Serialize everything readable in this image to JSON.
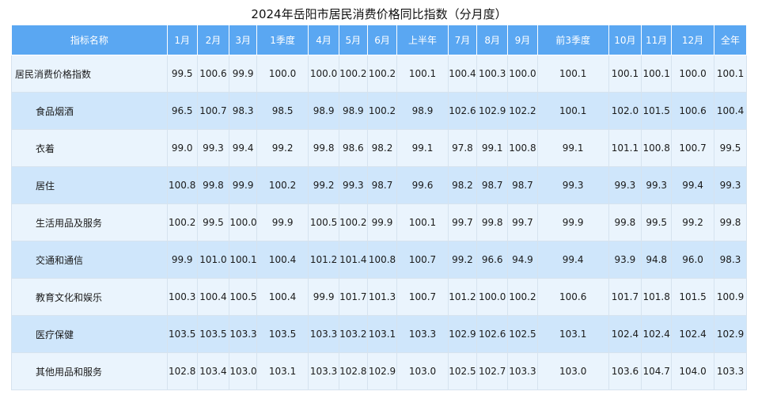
{
  "title": "2024年岳阳市居民消费价格同比指数（分月度）",
  "columns": [
    "指标名称",
    "1月",
    "2月",
    "3月",
    "1季度",
    "4月",
    "5月",
    "6月",
    "上半年",
    "7月",
    "8月",
    "9月",
    "前3季度",
    "10月",
    "11月",
    "12月",
    "全年"
  ],
  "rows": [
    {
      "name": "居民消费价格指数",
      "values": [
        "99.5",
        "100.6",
        "99.9",
        "100.0",
        "100.0",
        "100.2",
        "100.2",
        "100.1",
        "100.4",
        "100.3",
        "100.0",
        "100.1",
        "100.1",
        "100.1",
        "100.0",
        "100.1"
      ]
    },
    {
      "name": "食品烟酒",
      "values": [
        "96.5",
        "100.7",
        "98.3",
        "98.5",
        "98.9",
        "98.9",
        "100.2",
        "98.9",
        "102.6",
        "102.9",
        "102.2",
        "100.1",
        "102.0",
        "101.5",
        "100.6",
        "100.4"
      ]
    },
    {
      "name": "衣着",
      "values": [
        "99.0",
        "99.3",
        "99.4",
        "99.2",
        "99.8",
        "98.6",
        "98.2",
        "99.1",
        "97.8",
        "99.1",
        "100.8",
        "99.1",
        "101.1",
        "100.8",
        "100.7",
        "99.5"
      ]
    },
    {
      "name": "居住",
      "values": [
        "100.8",
        "99.8",
        "99.9",
        "100.2",
        "99.2",
        "99.3",
        "98.7",
        "99.6",
        "98.2",
        "98.7",
        "98.7",
        "99.3",
        "99.3",
        "99.3",
        "99.4",
        "99.3"
      ]
    },
    {
      "name": "生活用品及服务",
      "values": [
        "100.2",
        "99.5",
        "100.0",
        "99.9",
        "100.5",
        "100.2",
        "99.9",
        "100.1",
        "99.7",
        "99.8",
        "99.7",
        "99.9",
        "99.8",
        "99.5",
        "99.2",
        "99.8"
      ]
    },
    {
      "name": "交通和通信",
      "values": [
        "99.9",
        "101.0",
        "100.1",
        "100.4",
        "101.2",
        "101.4",
        "100.8",
        "100.7",
        "99.2",
        "96.6",
        "94.9",
        "99.4",
        "93.9",
        "94.8",
        "96.0",
        "98.3"
      ]
    },
    {
      "name": "教育文化和娱乐",
      "values": [
        "100.3",
        "100.4",
        "100.5",
        "100.4",
        "99.9",
        "101.7",
        "101.3",
        "100.7",
        "101.2",
        "100.0",
        "100.2",
        "100.6",
        "101.7",
        "101.8",
        "101.5",
        "100.9"
      ]
    },
    {
      "name": "医疗保健",
      "values": [
        "103.5",
        "103.5",
        "103.3",
        "103.5",
        "103.3",
        "103.2",
        "103.1",
        "103.3",
        "102.9",
        "102.6",
        "102.5",
        "103.1",
        "102.4",
        "102.4",
        "102.4",
        "102.9"
      ]
    },
    {
      "name": "其他用品和服务",
      "values": [
        "102.8",
        "103.4",
        "103.0",
        "103.1",
        "103.3",
        "102.8",
        "102.9",
        "103.0",
        "102.5",
        "102.7",
        "103.3",
        "103.0",
        "103.6",
        "104.7",
        "104.0",
        "103.3"
      ]
    }
  ],
  "colors": {
    "header_bg": "#5aa7f2",
    "row_light": "#eaf4fd",
    "row_dark": "#cfe6fb"
  }
}
